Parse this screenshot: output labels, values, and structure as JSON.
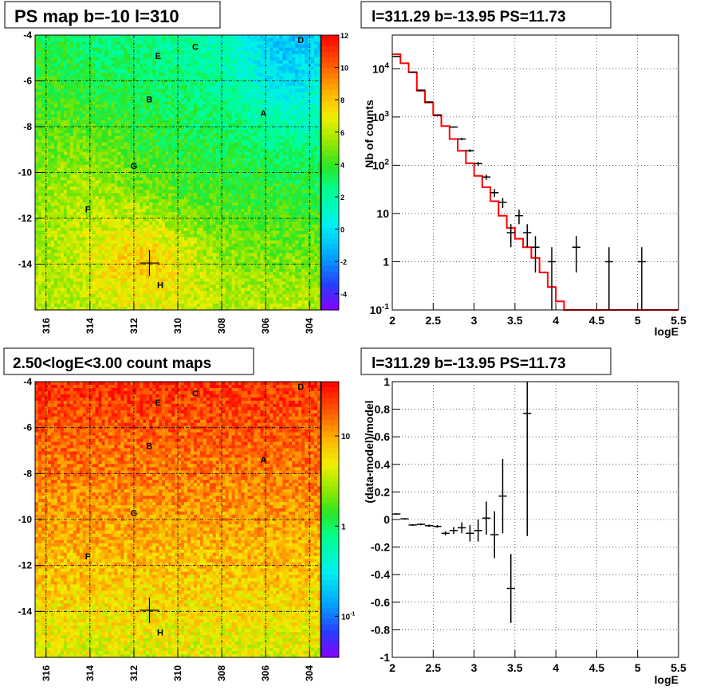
{
  "colors": {
    "data": "#000000",
    "model": "#ff0000",
    "grid": "#000000"
  },
  "labels": {
    "A": "A",
    "B": "B",
    "C": "C",
    "D": "D",
    "E": "E",
    "F": "F",
    "G": "G",
    "H": "H"
  },
  "chart_data": [
    {
      "type": "heatmap",
      "title": "PS map b=-10 l=310",
      "x_ticks": [
        "316",
        "314",
        "312",
        "310",
        "308",
        "306",
        "304"
      ],
      "y_ticks": [
        "-4",
        "-6",
        "-8",
        "-10",
        "-12",
        "-14"
      ],
      "xlim": [
        316.5,
        303.5
      ],
      "ylim": [
        -16,
        -4
      ],
      "colorbar": {
        "scale": "linear",
        "min": -5,
        "max": 12,
        "ticks": [
          "12",
          "10",
          "8",
          "6",
          "4",
          "2",
          "0",
          "-2",
          "-4"
        ],
        "tick_values": [
          12,
          10,
          8,
          6,
          4,
          2,
          0,
          -2,
          -4
        ]
      },
      "marker": {
        "l": 311.29,
        "b": -13.95
      },
      "sources": [
        {
          "name": "A",
          "l": 306.1,
          "b": -7.4
        },
        {
          "name": "B",
          "l": 311.3,
          "b": -6.8
        },
        {
          "name": "C",
          "l": 309.2,
          "b": -4.5
        },
        {
          "name": "D",
          "l": 304.4,
          "b": -4.2
        },
        {
          "name": "E",
          "l": 310.9,
          "b": -4.9
        },
        {
          "name": "F",
          "l": 314.1,
          "b": -11.6
        },
        {
          "name": "G",
          "l": 312.0,
          "b": -9.7
        },
        {
          "name": "H",
          "l": 310.8,
          "b": -14.9
        }
      ]
    },
    {
      "type": "line",
      "title": "l=311.29 b=-13.95 PS=11.73",
      "xlabel": "logE",
      "ylabel": "Nb of counts",
      "yscale": "log",
      "xlim": [
        2,
        5.5
      ],
      "ylim": [
        0.1,
        50000
      ],
      "grid": true,
      "x_ticks": [
        "2",
        "2.5",
        "3",
        "3.5",
        "4",
        "4.5",
        "5",
        "5.5"
      ],
      "y_ticks": [
        {
          "value": 10000,
          "base": "10",
          "exp": "4"
        },
        {
          "value": 1000,
          "base": "10",
          "exp": "3"
        },
        {
          "value": 100,
          "base": "10",
          "exp": "2"
        },
        {
          "value": 10,
          "base": "10",
          "exp": ""
        },
        {
          "value": 1,
          "base": "1",
          "exp": ""
        },
        {
          "value": 0.1,
          "base": "10",
          "exp": "-1"
        }
      ],
      "model_bins": [
        2.0,
        2.1,
        2.2,
        2.3,
        2.4,
        2.5,
        2.6,
        2.7,
        2.8,
        2.9,
        3.0,
        3.1,
        3.2,
        3.3,
        3.4,
        3.5,
        3.6,
        3.7,
        3.8,
        3.9,
        4.0,
        4.1,
        4.2,
        4.3,
        4.4,
        4.5,
        4.6,
        4.7,
        4.8,
        4.9,
        5.0,
        5.1,
        5.2,
        5.3,
        5.4,
        5.5
      ],
      "model_values": [
        20000,
        13000,
        8500,
        3500,
        2000,
        1100,
        650,
        350,
        200,
        110,
        60,
        35,
        18,
        9,
        5,
        3,
        2,
        1.2,
        0.6,
        0.3,
        0.15,
        0.1,
        0.1,
        0.1,
        0.1,
        0.1,
        0.1,
        0.1,
        0.1,
        0.1,
        0.1,
        0.1,
        0.1,
        0.1,
        0.1
      ],
      "data_points": [
        {
          "x": 2.05,
          "y": 18000,
          "lo": 17500,
          "hi": 18500
        },
        {
          "x": 2.25,
          "y": 8500,
          "lo": 8300,
          "hi": 8700
        },
        {
          "x": 2.35,
          "y": 3600,
          "lo": 3500,
          "hi": 3700
        },
        {
          "x": 2.45,
          "y": 2050,
          "lo": 2000,
          "hi": 2100
        },
        {
          "x": 2.55,
          "y": 1080,
          "lo": 1050,
          "hi": 1110
        },
        {
          "x": 2.75,
          "y": 620,
          "lo": 600,
          "hi": 640
        },
        {
          "x": 2.85,
          "y": 350,
          "lo": 330,
          "hi": 370
        },
        {
          "x": 2.95,
          "y": 200,
          "lo": 186,
          "hi": 214
        },
        {
          "x": 3.05,
          "y": 108,
          "lo": 98,
          "hi": 118
        },
        {
          "x": 3.15,
          "y": 57,
          "lo": 50,
          "hi": 64
        },
        {
          "x": 3.25,
          "y": 27,
          "lo": 22,
          "hi": 32
        },
        {
          "x": 3.35,
          "y": 17,
          "lo": 13,
          "hi": 21
        },
        {
          "x": 3.45,
          "y": 4,
          "lo": 2,
          "hi": 6
        },
        {
          "x": 3.55,
          "y": 9,
          "lo": 6,
          "hi": 12
        },
        {
          "x": 3.65,
          "y": 4,
          "lo": 2,
          "hi": 6
        },
        {
          "x": 3.75,
          "y": 2,
          "lo": 0.6,
          "hi": 3.4
        },
        {
          "x": 3.95,
          "y": 1,
          "lo": 0.1,
          "hi": 2
        },
        {
          "x": 4.25,
          "y": 2,
          "lo": 0.6,
          "hi": 3.4
        },
        {
          "x": 4.65,
          "y": 1,
          "lo": 0.1,
          "hi": 2
        },
        {
          "x": 5.05,
          "y": 1,
          "lo": 0.1,
          "hi": 2
        }
      ]
    },
    {
      "type": "heatmap",
      "title": "2.50<logE<3.00 count maps",
      "x_ticks": [
        "316",
        "314",
        "312",
        "310",
        "308",
        "306",
        "304"
      ],
      "y_ticks": [
        "-4",
        "-6",
        "-8",
        "-10",
        "-12",
        "-14"
      ],
      "xlim": [
        316.5,
        303.5
      ],
      "ylim": [
        -16,
        -4
      ],
      "colorbar": {
        "scale": "log",
        "ticks": [
          {
            "value": 10,
            "base": "10",
            "exp": ""
          },
          {
            "value": 1,
            "base": "1",
            "exp": ""
          },
          {
            "value": 0.1,
            "base": "10",
            "exp": "-1"
          }
        ]
      },
      "marker": {
        "l": 311.29,
        "b": -13.95
      },
      "sources": [
        {
          "name": "A",
          "l": 306.1,
          "b": -7.4
        },
        {
          "name": "B",
          "l": 311.3,
          "b": -6.8
        },
        {
          "name": "C",
          "l": 309.2,
          "b": -4.5
        },
        {
          "name": "D",
          "l": 304.4,
          "b": -4.2
        },
        {
          "name": "E",
          "l": 310.9,
          "b": -4.9
        },
        {
          "name": "F",
          "l": 314.1,
          "b": -11.6
        },
        {
          "name": "G",
          "l": 312.0,
          "b": -9.7
        },
        {
          "name": "H",
          "l": 310.8,
          "b": -14.9
        }
      ]
    },
    {
      "type": "scatter",
      "title": "l=311.29 b=-13.95 PS=11.73",
      "xlabel": "logE",
      "ylabel": "(data-model)/model",
      "xlim": [
        2,
        5.5
      ],
      "ylim": [
        -1,
        1
      ],
      "grid": true,
      "x_ticks": [
        "2",
        "2.5",
        "3",
        "3.5",
        "4",
        "4.5",
        "5",
        "5.5"
      ],
      "y_ticks": [
        "1",
        "0.8",
        "0.6",
        "0.4",
        "0.2",
        "0",
        "-0.2",
        "-0.4",
        "-0.6",
        "-0.8",
        "-1"
      ],
      "points": [
        {
          "x": 2.05,
          "y": 0.04,
          "err": 0.005,
          "xerr": 0.05
        },
        {
          "x": 2.15,
          "y": 0.005,
          "err": 0.005,
          "xerr": 0.05
        },
        {
          "x": 2.25,
          "y": -0.04,
          "err": 0.006,
          "xerr": 0.05
        },
        {
          "x": 2.35,
          "y": -0.035,
          "err": 0.007,
          "xerr": 0.05
        },
        {
          "x": 2.45,
          "y": -0.045,
          "err": 0.008,
          "xerr": 0.05
        },
        {
          "x": 2.55,
          "y": -0.05,
          "err": 0.01,
          "xerr": 0.05
        },
        {
          "x": 2.65,
          "y": -0.1,
          "err": 0.015,
          "xerr": 0.05
        },
        {
          "x": 2.75,
          "y": -0.08,
          "err": 0.025,
          "xerr": 0.05
        },
        {
          "x": 2.85,
          "y": -0.06,
          "err": 0.04,
          "xerr": 0.05
        },
        {
          "x": 2.95,
          "y": -0.1,
          "err": 0.06,
          "xerr": 0.05
        },
        {
          "x": 3.05,
          "y": -0.08,
          "err": 0.08,
          "xerr": 0.05
        },
        {
          "x": 3.15,
          "y": 0.01,
          "err": 0.12,
          "xerr": 0.05
        },
        {
          "x": 3.25,
          "y": -0.11,
          "err": 0.17,
          "xerr": 0.05
        },
        {
          "x": 3.35,
          "y": 0.17,
          "err": 0.27,
          "xerr": 0.05
        },
        {
          "x": 3.45,
          "y": -0.5,
          "err": 0.25,
          "xerr": 0.05
        },
        {
          "x": 3.65,
          "y": 0.77,
          "err": 0.89,
          "xerr": 0.05
        }
      ]
    }
  ]
}
